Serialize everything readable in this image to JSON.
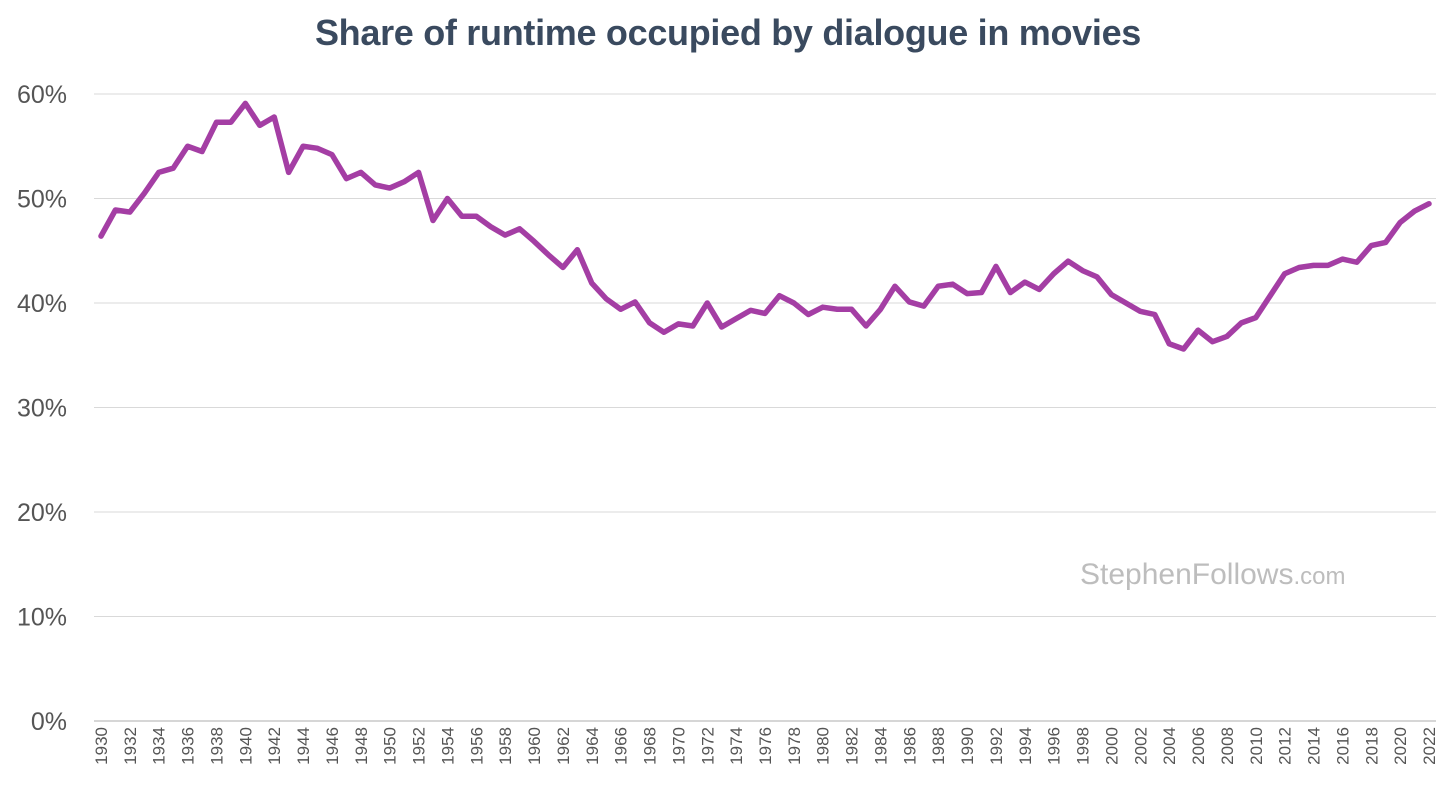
{
  "chart_data": {
    "type": "line",
    "title": "Share of runtime occupied by dialogue in movies",
    "xlabel": "",
    "ylabel": "",
    "ylim": [
      0,
      60
    ],
    "xlim": [
      1930,
      2022
    ],
    "yticks": [
      0,
      10,
      20,
      30,
      40,
      50,
      60
    ],
    "ytick_labels": [
      "0%",
      "10%",
      "20%",
      "30%",
      "40%",
      "50%",
      "60%"
    ],
    "xtick_labels": [
      "1930",
      "1932",
      "1934",
      "1936",
      "1938",
      "1940",
      "1942",
      "1944",
      "1946",
      "1948",
      "1950",
      "1952",
      "1954",
      "1956",
      "1958",
      "1960",
      "1962",
      "1964",
      "1966",
      "1968",
      "1970",
      "1972",
      "1974",
      "1976",
      "1978",
      "1980",
      "1982",
      "1984",
      "1986",
      "1988",
      "1990",
      "1992",
      "1994",
      "1996",
      "1998",
      "2000",
      "2002",
      "2004",
      "2006",
      "2008",
      "2010",
      "2012",
      "2014",
      "2016",
      "2018",
      "2020",
      "2022"
    ],
    "grid": true,
    "legend": "none",
    "series": [
      {
        "color": "#a43ea4",
        "x": [
          1930,
          1931,
          1932,
          1933,
          1934,
          1935,
          1936,
          1937,
          1938,
          1939,
          1940,
          1941,
          1942,
          1943,
          1944,
          1945,
          1946,
          1947,
          1948,
          1949,
          1950,
          1951,
          1952,
          1953,
          1954,
          1955,
          1956,
          1957,
          1958,
          1959,
          1960,
          1961,
          1962,
          1963,
          1964,
          1965,
          1966,
          1967,
          1968,
          1969,
          1970,
          1971,
          1972,
          1973,
          1974,
          1975,
          1976,
          1977,
          1978,
          1979,
          1980,
          1981,
          1982,
          1983,
          1984,
          1985,
          1986,
          1987,
          1988,
          1989,
          1990,
          1991,
          1992,
          1993,
          1994,
          1995,
          1996,
          1997,
          1998,
          1999,
          2000,
          2001,
          2002,
          2003,
          2004,
          2005,
          2006,
          2007,
          2008,
          2009,
          2010,
          2011,
          2012,
          2013,
          2014,
          2015,
          2016,
          2017,
          2018,
          2019,
          2020,
          2021,
          2022
        ],
        "y": [
          46.4,
          48.9,
          48.7,
          50.5,
          52.5,
          52.9,
          55.0,
          54.5,
          57.3,
          57.3,
          59.1,
          57.0,
          57.8,
          52.5,
          55.0,
          54.8,
          54.2,
          51.9,
          52.5,
          51.3,
          51.0,
          51.6,
          52.5,
          47.9,
          50.0,
          48.3,
          48.3,
          47.3,
          46.5,
          47.1,
          45.9,
          44.6,
          43.4,
          45.1,
          41.9,
          40.4,
          39.4,
          40.1,
          38.1,
          37.2,
          38.0,
          37.8,
          40.0,
          37.7,
          38.5,
          39.3,
          39.0,
          40.7,
          40.0,
          38.9,
          39.6,
          39.4,
          39.4,
          37.8,
          39.4,
          41.6,
          40.1,
          39.7,
          41.6,
          41.8,
          40.9,
          41.0,
          43.5,
          41.0,
          42.0,
          41.3,
          42.8,
          44.0,
          43.1,
          42.5,
          40.8,
          40.0,
          39.2,
          38.9,
          36.1,
          35.6,
          37.4,
          36.3,
          36.8,
          38.1,
          38.6,
          40.7,
          42.8,
          43.4,
          43.6,
          43.6,
          44.2,
          43.9,
          45.5,
          45.8,
          47.7,
          48.8,
          49.5
        ]
      }
    ]
  },
  "watermark": {
    "name": "StephenFollows",
    "tld": ".com"
  }
}
